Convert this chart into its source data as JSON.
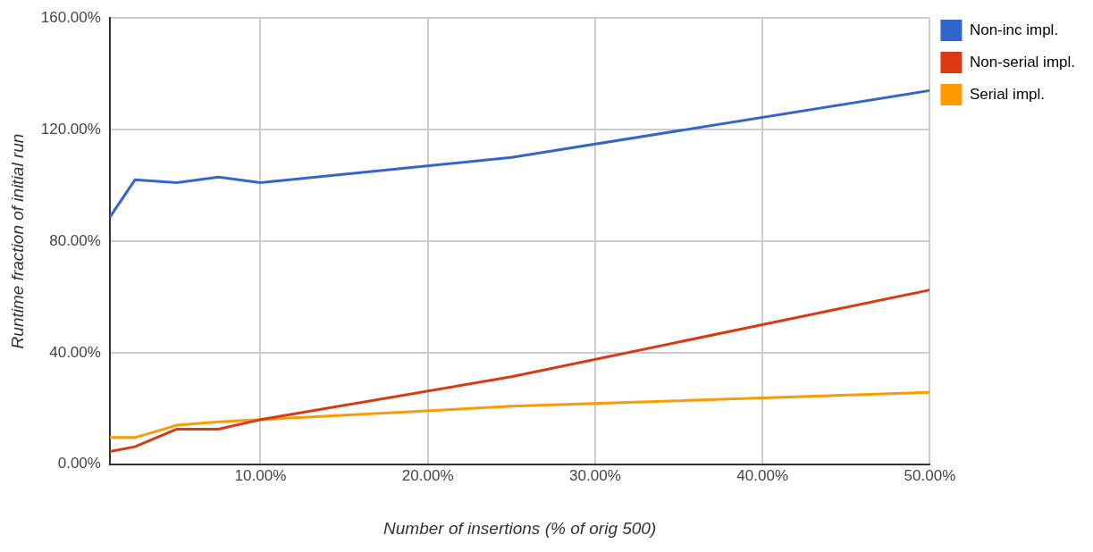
{
  "chart_data": {
    "type": "line",
    "xlabel": "Number of insertions (% of orig 500)",
    "ylabel": "Runtime fraction of initial run",
    "x": [
      1,
      2.5,
      5,
      7.5,
      10,
      25,
      50
    ],
    "series": [
      {
        "name": "Non-inc impl.",
        "color": "#3366cc",
        "values": [
          88.6,
          102,
          101,
          103,
          101,
          110,
          134
        ]
      },
      {
        "name": "Non-serial impl.",
        "color": "#dc3912",
        "values": [
          4.6,
          6.3,
          12.6,
          12.6,
          16,
          31.4,
          62.5
        ]
      },
      {
        "name": "Serial impl.",
        "color": "#ff9900",
        "values": [
          9.6,
          9.6,
          14,
          15.2,
          16,
          20.8,
          25.8
        ]
      }
    ],
    "xlim": [
      1,
      50
    ],
    "ylim": [
      0,
      160
    ],
    "xticks": [
      {
        "value": 10,
        "label": "10.00%"
      },
      {
        "value": 20,
        "label": "20.00%"
      },
      {
        "value": 30,
        "label": "30.00%"
      },
      {
        "value": 40,
        "label": "40.00%"
      },
      {
        "value": 50,
        "label": "50.00%"
      }
    ],
    "yticks": [
      {
        "value": 0,
        "label": "0.00%"
      },
      {
        "value": 40,
        "label": "40.00%"
      },
      {
        "value": 80,
        "label": "80.00%"
      },
      {
        "value": 120,
        "label": "120.00%"
      },
      {
        "value": 160,
        "label": "160.00%"
      }
    ],
    "grid": true,
    "legend": "right",
    "marker": "none",
    "line_style": "solid"
  }
}
